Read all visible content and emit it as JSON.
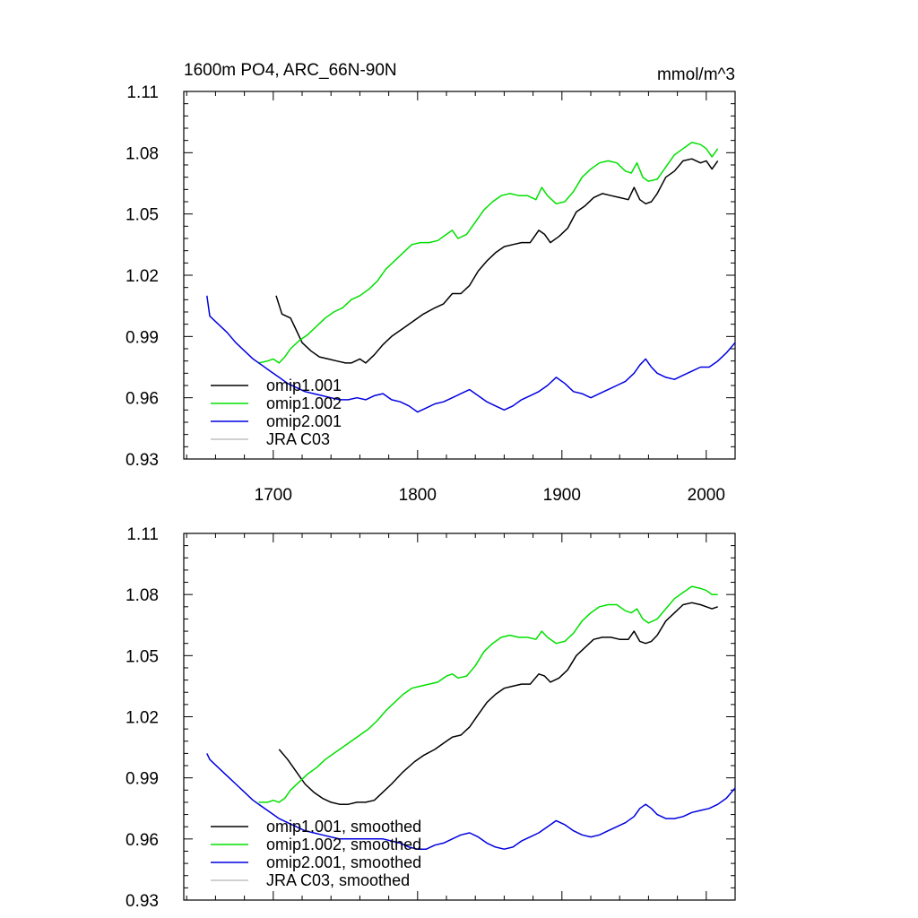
{
  "colors": {
    "omip1_001": "#000000",
    "omip1_002": "#00e000",
    "omip2_001": "#0000e0",
    "jra": "#c0c0c0"
  },
  "chart_data": [
    {
      "type": "line",
      "title": "1600m PO4, ARC_66N-90N",
      "units": "mmol/m^3",
      "xlim": [
        1638,
        2020
      ],
      "ylim": [
        0.93,
        1.11
      ],
      "yticks": [
        "0.93",
        "0.96",
        "0.99",
        "1.02",
        "1.05",
        "1.08",
        "1.11"
      ],
      "xticks": [
        "1700",
        "1800",
        "1900",
        "2000"
      ],
      "legend_position": "bottom-left",
      "series": [
        {
          "name": "omip1.001",
          "color_key": "omip1_001",
          "x": [
            1702,
            1706,
            1712,
            1716,
            1720,
            1726,
            1732,
            1738,
            1744,
            1750,
            1754,
            1760,
            1764,
            1770,
            1776,
            1782,
            1790,
            1798,
            1804,
            1812,
            1818,
            1824,
            1830,
            1836,
            1842,
            1848,
            1854,
            1860,
            1866,
            1872,
            1878,
            1884,
            1888,
            1892,
            1898,
            1904,
            1910,
            1916,
            1922,
            1928,
            1934,
            1940,
            1946,
            1950,
            1954,
            1958,
            1962,
            1966,
            1972,
            1978,
            1984,
            1990,
            1996,
            2000,
            2004,
            2008
          ],
          "y": [
            1.01,
            1.001,
            0.999,
            0.993,
            0.987,
            0.983,
            0.98,
            0.979,
            0.978,
            0.977,
            0.977,
            0.979,
            0.977,
            0.981,
            0.986,
            0.99,
            0.994,
            0.998,
            1.001,
            1.004,
            1.006,
            1.011,
            1.011,
            1.015,
            1.022,
            1.027,
            1.031,
            1.034,
            1.035,
            1.036,
            1.036,
            1.042,
            1.04,
            1.036,
            1.039,
            1.043,
            1.051,
            1.054,
            1.058,
            1.06,
            1.059,
            1.058,
            1.057,
            1.063,
            1.057,
            1.055,
            1.056,
            1.06,
            1.068,
            1.071,
            1.076,
            1.077,
            1.075,
            1.076,
            1.072,
            1.076
          ]
        },
        {
          "name": "omip1.002",
          "color_key": "omip1_002",
          "x": [
            1690,
            1696,
            1700,
            1704,
            1708,
            1712,
            1718,
            1724,
            1730,
            1736,
            1742,
            1748,
            1754,
            1760,
            1766,
            1772,
            1778,
            1784,
            1790,
            1796,
            1802,
            1808,
            1814,
            1820,
            1824,
            1828,
            1834,
            1840,
            1846,
            1852,
            1858,
            1864,
            1870,
            1876,
            1882,
            1886,
            1890,
            1896,
            1902,
            1908,
            1914,
            1920,
            1926,
            1932,
            1938,
            1944,
            1948,
            1952,
            1956,
            1960,
            1966,
            1972,
            1978,
            1984,
            1990,
            1996,
            2000,
            2004,
            2008
          ],
          "y": [
            0.977,
            0.978,
            0.979,
            0.977,
            0.98,
            0.984,
            0.988,
            0.991,
            0.995,
            0.999,
            1.002,
            1.004,
            1.008,
            1.01,
            1.013,
            1.017,
            1.023,
            1.027,
            1.031,
            1.035,
            1.036,
            1.036,
            1.037,
            1.04,
            1.042,
            1.038,
            1.04,
            1.046,
            1.052,
            1.056,
            1.059,
            1.06,
            1.059,
            1.059,
            1.057,
            1.063,
            1.059,
            1.055,
            1.056,
            1.061,
            1.068,
            1.072,
            1.075,
            1.076,
            1.075,
            1.071,
            1.07,
            1.075,
            1.068,
            1.066,
            1.067,
            1.073,
            1.079,
            1.082,
            1.085,
            1.084,
            1.082,
            1.078,
            1.082
          ]
        },
        {
          "name": "omip2.001",
          "color_key": "omip2_001",
          "x": [
            1654,
            1656,
            1662,
            1668,
            1674,
            1680,
            1686,
            1692,
            1698,
            1704,
            1710,
            1716,
            1722,
            1728,
            1734,
            1740,
            1746,
            1752,
            1758,
            1764,
            1770,
            1776,
            1782,
            1788,
            1794,
            1800,
            1806,
            1812,
            1818,
            1824,
            1830,
            1836,
            1842,
            1848,
            1854,
            1860,
            1866,
            1872,
            1878,
            1884,
            1890,
            1896,
            1902,
            1908,
            1914,
            1920,
            1926,
            1932,
            1938,
            1944,
            1950,
            1954,
            1958,
            1962,
            1966,
            1972,
            1978,
            1984,
            1990,
            1996,
            2002,
            2008,
            2014,
            2020
          ],
          "y": [
            1.01,
            1.0,
            0.996,
            0.992,
            0.987,
            0.983,
            0.979,
            0.976,
            0.973,
            0.97,
            0.967,
            0.965,
            0.963,
            0.962,
            0.961,
            0.96,
            0.959,
            0.959,
            0.96,
            0.959,
            0.961,
            0.962,
            0.959,
            0.958,
            0.956,
            0.953,
            0.955,
            0.957,
            0.958,
            0.96,
            0.962,
            0.964,
            0.961,
            0.958,
            0.956,
            0.954,
            0.956,
            0.959,
            0.961,
            0.963,
            0.966,
            0.97,
            0.967,
            0.963,
            0.962,
            0.96,
            0.962,
            0.964,
            0.966,
            0.968,
            0.972,
            0.976,
            0.979,
            0.975,
            0.972,
            0.97,
            0.969,
            0.971,
            0.973,
            0.975,
            0.975,
            0.978,
            0.982,
            0.987
          ]
        },
        {
          "name": "JRA C03",
          "color_key": "jra",
          "x": [],
          "y": []
        }
      ]
    },
    {
      "type": "line",
      "title": "",
      "units": "",
      "xlim": [
        1638,
        2020
      ],
      "ylim": [
        0.93,
        1.11
      ],
      "yticks": [
        "0.93",
        "0.96",
        "0.99",
        "1.02",
        "1.05",
        "1.08",
        "1.11"
      ],
      "xticks": [],
      "legend_position": "bottom-left",
      "series": [
        {
          "name": "omip1.001, smoothed",
          "color_key": "omip1_001",
          "x": [
            1704,
            1710,
            1716,
            1722,
            1728,
            1734,
            1740,
            1746,
            1752,
            1758,
            1764,
            1770,
            1776,
            1782,
            1790,
            1798,
            1804,
            1812,
            1818,
            1824,
            1830,
            1836,
            1842,
            1848,
            1854,
            1860,
            1866,
            1872,
            1878,
            1884,
            1888,
            1892,
            1898,
            1904,
            1910,
            1916,
            1922,
            1928,
            1934,
            1940,
            1946,
            1950,
            1954,
            1958,
            1962,
            1966,
            1972,
            1978,
            1984,
            1990,
            1996,
            2000,
            2004,
            2008
          ],
          "y": [
            1.004,
            0.999,
            0.993,
            0.987,
            0.983,
            0.98,
            0.978,
            0.977,
            0.977,
            0.978,
            0.978,
            0.979,
            0.983,
            0.987,
            0.993,
            0.998,
            1.001,
            1.004,
            1.007,
            1.01,
            1.011,
            1.015,
            1.021,
            1.027,
            1.031,
            1.034,
            1.035,
            1.036,
            1.036,
            1.041,
            1.04,
            1.037,
            1.039,
            1.043,
            1.05,
            1.054,
            1.058,
            1.059,
            1.059,
            1.058,
            1.058,
            1.062,
            1.057,
            1.056,
            1.057,
            1.06,
            1.067,
            1.071,
            1.075,
            1.076,
            1.075,
            1.074,
            1.073,
            1.074
          ]
        },
        {
          "name": "omip1.002, smoothed",
          "color_key": "omip1_002",
          "x": [
            1690,
            1696,
            1700,
            1704,
            1708,
            1712,
            1718,
            1724,
            1730,
            1736,
            1742,
            1748,
            1754,
            1760,
            1766,
            1772,
            1778,
            1784,
            1790,
            1796,
            1802,
            1808,
            1814,
            1820,
            1824,
            1828,
            1834,
            1840,
            1846,
            1852,
            1858,
            1864,
            1870,
            1876,
            1882,
            1886,
            1890,
            1896,
            1902,
            1908,
            1914,
            1920,
            1926,
            1932,
            1938,
            1944,
            1948,
            1952,
            1956,
            1960,
            1966,
            1972,
            1978,
            1984,
            1990,
            1996,
            2000,
            2004,
            2008
          ],
          "y": [
            0.978,
            0.978,
            0.979,
            0.978,
            0.98,
            0.984,
            0.988,
            0.992,
            0.995,
            0.999,
            1.002,
            1.005,
            1.008,
            1.011,
            1.014,
            1.018,
            1.023,
            1.027,
            1.031,
            1.034,
            1.035,
            1.036,
            1.037,
            1.04,
            1.041,
            1.039,
            1.04,
            1.045,
            1.052,
            1.056,
            1.059,
            1.06,
            1.059,
            1.059,
            1.058,
            1.062,
            1.059,
            1.056,
            1.057,
            1.061,
            1.067,
            1.071,
            1.074,
            1.075,
            1.075,
            1.072,
            1.071,
            1.073,
            1.068,
            1.066,
            1.068,
            1.073,
            1.078,
            1.081,
            1.084,
            1.083,
            1.082,
            1.08,
            1.08
          ]
        },
        {
          "name": "omip2.001, smoothed",
          "color_key": "omip2_001",
          "x": [
            1654,
            1656,
            1662,
            1668,
            1674,
            1680,
            1686,
            1692,
            1698,
            1704,
            1710,
            1716,
            1722,
            1728,
            1734,
            1740,
            1746,
            1752,
            1758,
            1764,
            1770,
            1776,
            1782,
            1788,
            1794,
            1800,
            1806,
            1812,
            1818,
            1824,
            1830,
            1836,
            1842,
            1848,
            1854,
            1860,
            1866,
            1872,
            1878,
            1884,
            1890,
            1896,
            1902,
            1908,
            1914,
            1920,
            1926,
            1932,
            1938,
            1944,
            1950,
            1954,
            1958,
            1962,
            1966,
            1972,
            1978,
            1984,
            1990,
            1996,
            2002,
            2008,
            2014,
            2020
          ],
          "y": [
            1.002,
            0.999,
            0.995,
            0.991,
            0.987,
            0.983,
            0.979,
            0.976,
            0.973,
            0.97,
            0.968,
            0.966,
            0.964,
            0.963,
            0.962,
            0.961,
            0.96,
            0.96,
            0.96,
            0.96,
            0.96,
            0.96,
            0.959,
            0.958,
            0.956,
            0.955,
            0.955,
            0.957,
            0.958,
            0.96,
            0.962,
            0.963,
            0.961,
            0.958,
            0.956,
            0.955,
            0.956,
            0.959,
            0.961,
            0.963,
            0.966,
            0.969,
            0.967,
            0.964,
            0.962,
            0.961,
            0.962,
            0.964,
            0.966,
            0.968,
            0.971,
            0.975,
            0.977,
            0.975,
            0.972,
            0.97,
            0.97,
            0.971,
            0.973,
            0.974,
            0.975,
            0.977,
            0.98,
            0.985
          ]
        },
        {
          "name": "JRA C03, smoothed",
          "color_key": "jra",
          "x": [],
          "y": []
        }
      ]
    }
  ]
}
